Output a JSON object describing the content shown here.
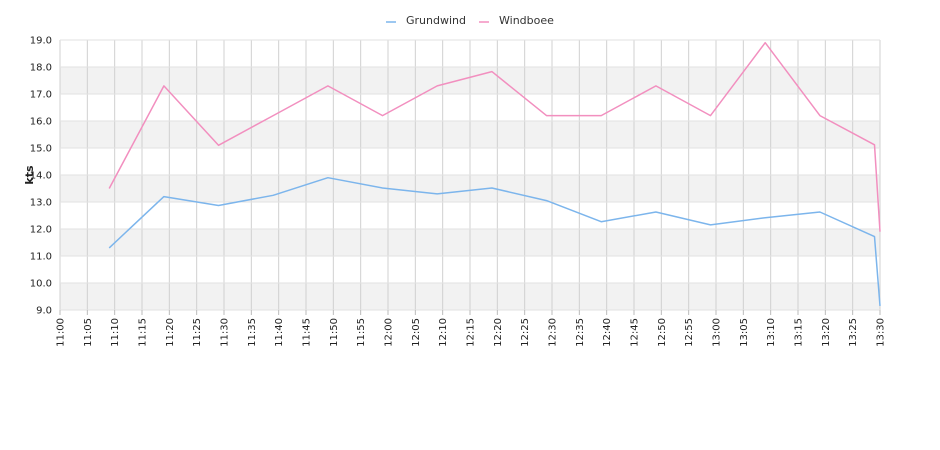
{
  "chart_data": {
    "type": "line",
    "title": "",
    "xlabel": "",
    "ylabel": "kts",
    "ylim": [
      9.0,
      19.0
    ],
    "yticks": [
      "9.0",
      "10.0",
      "11.0",
      "12.0",
      "13.0",
      "14.0",
      "15.0",
      "16.0",
      "17.0",
      "18.0",
      "19.0"
    ],
    "xticks": [
      "11:00",
      "11:05",
      "11:10",
      "11:15",
      "11:20",
      "11:25",
      "11:30",
      "11:35",
      "11:40",
      "11:45",
      "11:50",
      "11:55",
      "12:00",
      "12:05",
      "12:10",
      "12:15",
      "12:20",
      "12:25",
      "12:30",
      "12:35",
      "12:40",
      "12:45",
      "12:50",
      "12:55",
      "13:00",
      "13:05",
      "13:10",
      "13:15",
      "13:20",
      "13:25",
      "13:30"
    ],
    "legend_position": "top-center",
    "grid": true,
    "series": [
      {
        "name": "Grundwind",
        "color": "#7cb5ec",
        "points": [
          {
            "x": "11:09",
            "y": 11.3
          },
          {
            "x": "11:19",
            "y": 13.2
          },
          {
            "x": "11:29",
            "y": 12.87
          },
          {
            "x": "11:39",
            "y": 13.25
          },
          {
            "x": "11:49",
            "y": 13.9
          },
          {
            "x": "11:59",
            "y": 13.52
          },
          {
            "x": "12:09",
            "y": 13.3
          },
          {
            "x": "12:19",
            "y": 13.52
          },
          {
            "x": "12:29",
            "y": 13.05
          },
          {
            "x": "12:39",
            "y": 12.27
          },
          {
            "x": "12:49",
            "y": 12.63
          },
          {
            "x": "12:59",
            "y": 12.15
          },
          {
            "x": "13:09",
            "y": 12.42
          },
          {
            "x": "13:19",
            "y": 12.63
          },
          {
            "x": "13:29",
            "y": 11.72
          },
          {
            "x": "13:30",
            "y": 9.15
          }
        ]
      },
      {
        "name": "Windboee",
        "color": "#f28fbf",
        "points": [
          {
            "x": "11:09",
            "y": 13.5
          },
          {
            "x": "11:19",
            "y": 17.3
          },
          {
            "x": "11:29",
            "y": 15.1
          },
          {
            "x": "11:39",
            "y": 16.2
          },
          {
            "x": "11:49",
            "y": 17.3
          },
          {
            "x": "11:59",
            "y": 16.2
          },
          {
            "x": "12:09",
            "y": 17.3
          },
          {
            "x": "12:19",
            "y": 17.83
          },
          {
            "x": "12:29",
            "y": 16.2
          },
          {
            "x": "12:39",
            "y": 16.2
          },
          {
            "x": "12:49",
            "y": 17.3
          },
          {
            "x": "12:59",
            "y": 16.2
          },
          {
            "x": "13:09",
            "y": 18.9
          },
          {
            "x": "13:19",
            "y": 16.2
          },
          {
            "x": "13:29",
            "y": 15.12
          },
          {
            "x": "13:30",
            "y": 11.9
          }
        ]
      }
    ]
  }
}
